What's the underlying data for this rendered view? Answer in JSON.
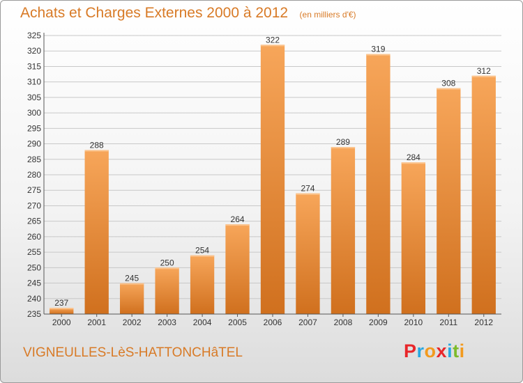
{
  "header": {
    "title": "Achats et Charges Externes 2000 à 2012",
    "unit": "(en milliers d'€)"
  },
  "footer": {
    "commune": "VIGNEULLES-LèS-HATTONCHâTEL",
    "brand_letters": [
      "P",
      "r",
      "o",
      "x",
      "i",
      "t",
      "i"
    ]
  },
  "colors": {
    "bar_light": "#f7a65a",
    "bar_dark": "#d0701e",
    "title": "#d87a26",
    "brand": [
      "#e8262a",
      "#29a8e0",
      "#f29a1e",
      "#e8262a",
      "#29a8e0",
      "#7dbb2a",
      "#f29a1e"
    ]
  },
  "chart_data": {
    "type": "bar",
    "categories": [
      "2000",
      "2001",
      "2002",
      "2003",
      "2004",
      "2005",
      "2006",
      "2007",
      "2008",
      "2009",
      "2010",
      "2011",
      "2012"
    ],
    "values": [
      237,
      288,
      245,
      250,
      254,
      264,
      322,
      274,
      289,
      319,
      284,
      308,
      312
    ],
    "ylim": [
      235,
      325
    ],
    "ytick_step": 5,
    "grid": true
  }
}
